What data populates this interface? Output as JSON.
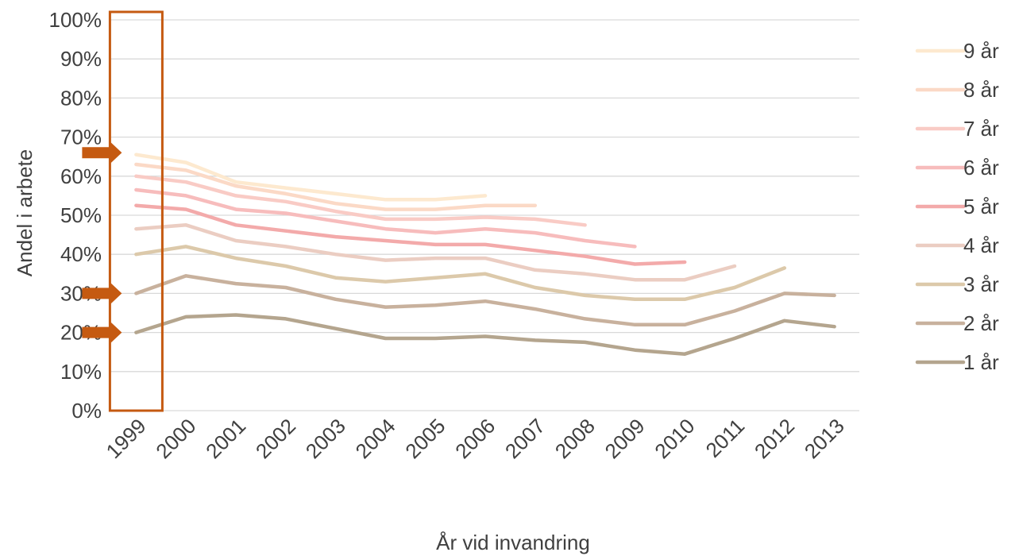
{
  "chart_data": {
    "type": "line",
    "title": "",
    "xlabel": "År vid invandring",
    "ylabel": "Andel  i arbete",
    "ylim": [
      0,
      100
    ],
    "yticks": [
      "0%",
      "10%",
      "20%",
      "30%",
      "40%",
      "50%",
      "60%",
      "70%",
      "80%",
      "90%",
      "100%"
    ],
    "categories": [
      "1999",
      "2000",
      "2001",
      "2002",
      "2003",
      "2004",
      "2005",
      "2006",
      "2007",
      "2008",
      "2009",
      "2010",
      "2011",
      "2012",
      "2013"
    ],
    "legend_position": "right",
    "grid": true,
    "series": [
      {
        "name": "9 år",
        "color": "#fde9cf",
        "values": [
          65.5,
          63.5,
          58.5,
          57,
          55.5,
          54,
          54,
          55,
          null,
          null,
          null,
          null,
          null,
          null,
          null
        ]
      },
      {
        "name": "8 år",
        "color": "#fbd9c6",
        "values": [
          63,
          61.5,
          57.5,
          55.5,
          53,
          51.5,
          51.5,
          52.5,
          52.5,
          null,
          null,
          null,
          null,
          null,
          null
        ]
      },
      {
        "name": "7 år",
        "color": "#f9cbc5",
        "values": [
          60,
          58.5,
          55,
          53.5,
          51,
          49,
          49,
          49.5,
          49,
          47.5,
          null,
          null,
          null,
          null,
          null
        ]
      },
      {
        "name": "6 år",
        "color": "#f7bcbc",
        "values": [
          56.5,
          55,
          51.5,
          50.5,
          48.5,
          46.5,
          45.5,
          46.5,
          45.5,
          43.5,
          42,
          null,
          null,
          null,
          null
        ]
      },
      {
        "name": "5 år",
        "color": "#f3aaaa",
        "values": [
          52.5,
          51.5,
          47.5,
          46,
          44.5,
          43.5,
          42.5,
          42.5,
          41,
          39.5,
          37.5,
          38,
          null,
          null,
          null
        ]
      },
      {
        "name": "4 år",
        "color": "#ebcdc2",
        "values": [
          46.5,
          47.5,
          43.5,
          42,
          40,
          38.5,
          39,
          39,
          36,
          35,
          33.5,
          33.5,
          37,
          null,
          null
        ]
      },
      {
        "name": "3 år",
        "color": "#dcc9aa",
        "values": [
          40,
          42,
          39,
          37,
          34,
          33,
          34,
          35,
          31.5,
          29.5,
          28.5,
          28.5,
          31.5,
          36.5,
          null
        ]
      },
      {
        "name": "2 år",
        "color": "#c8b19d",
        "values": [
          30,
          34.5,
          32.5,
          31.5,
          28.5,
          26.5,
          27,
          28,
          26,
          23.5,
          22,
          22,
          25.5,
          30,
          29.5
        ]
      },
      {
        "name": "1 år",
        "color": "#b4a58e",
        "values": [
          20,
          24,
          24.5,
          23.5,
          21,
          18.5,
          18.5,
          19,
          18,
          17.5,
          15.5,
          14.5,
          18.5,
          23,
          21.5
        ]
      }
    ],
    "annotations": {
      "highlight_category": "1999",
      "highlight_color": "#c55a11",
      "arrow_color": "#c55a11",
      "arrows_at_values": [
        66,
        30,
        20
      ]
    }
  }
}
